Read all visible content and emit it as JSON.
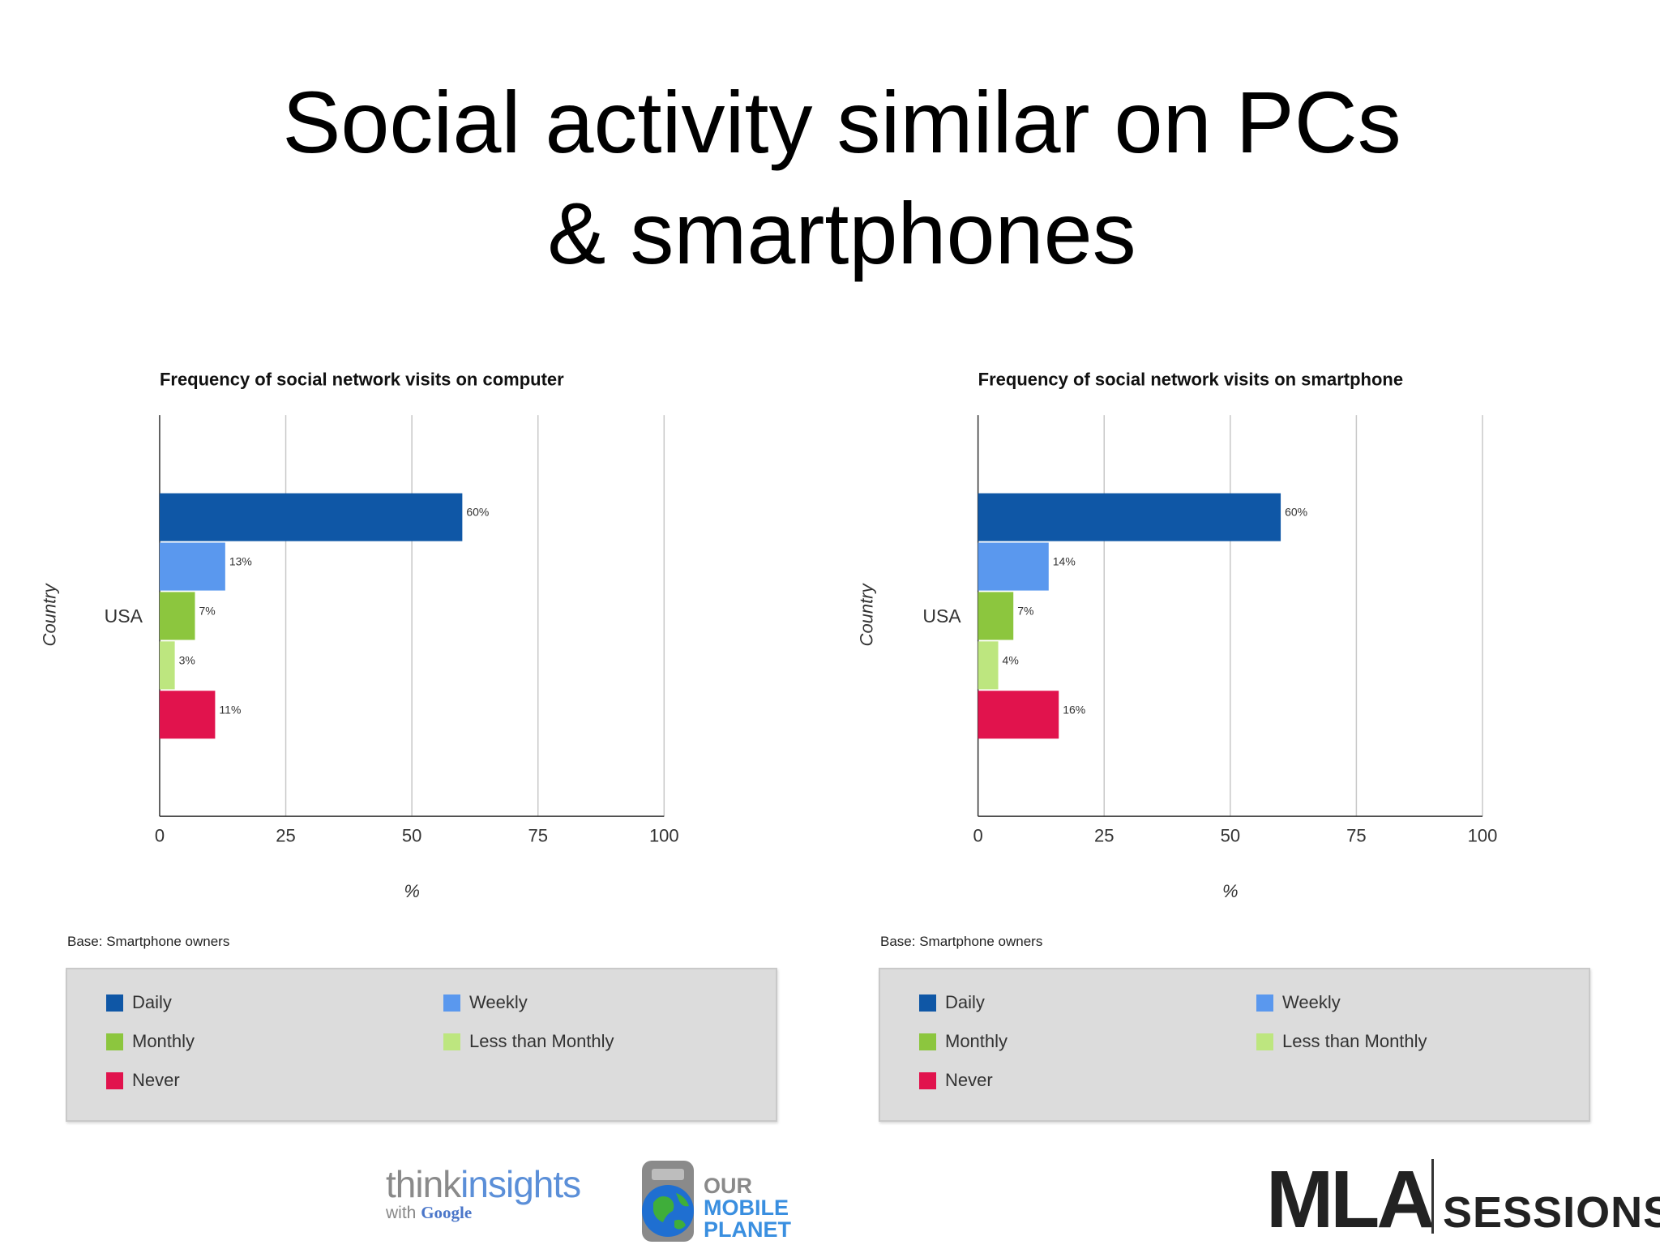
{
  "slide": {
    "title_line1": "Social activity similar on PCs",
    "title_line2": "& smartphones",
    "base_note": "Base: Smartphone owners"
  },
  "legend": {
    "items": [
      {
        "label": "Daily",
        "color": "#0f57a6"
      },
      {
        "label": "Weekly",
        "color": "#5a98ee"
      },
      {
        "label": "Monthly",
        "color": "#8cc63e"
      },
      {
        "label": "Less than Monthly",
        "color": "#bde67f"
      },
      {
        "label": "Never",
        "color": "#e1134d"
      }
    ]
  },
  "chart_data": [
    {
      "type": "bar",
      "orientation": "horizontal",
      "title": "Frequency of social network visits on computer",
      "xlabel": "%",
      "ylabel": "Country",
      "categories": [
        "USA"
      ],
      "xlim": [
        0,
        100
      ],
      "xticks": [
        "0",
        "25",
        "50",
        "75",
        "100"
      ],
      "grid": true,
      "series": [
        {
          "name": "Daily",
          "values": [
            60
          ],
          "label": "60%"
        },
        {
          "name": "Weekly",
          "values": [
            13
          ],
          "label": "13%"
        },
        {
          "name": "Monthly",
          "values": [
            7
          ],
          "label": "7%"
        },
        {
          "name": "Less than Monthly",
          "values": [
            3
          ],
          "label": "3%"
        },
        {
          "name": "Never",
          "values": [
            11
          ],
          "label": "11%"
        }
      ]
    },
    {
      "type": "bar",
      "orientation": "horizontal",
      "title": "Frequency of social network visits on smartphone",
      "xlabel": "%",
      "ylabel": "Country",
      "categories": [
        "USA"
      ],
      "xlim": [
        0,
        100
      ],
      "xticks": [
        "0",
        "25",
        "50",
        "75",
        "100"
      ],
      "grid": true,
      "series": [
        {
          "name": "Daily",
          "values": [
            60
          ],
          "label": "60%"
        },
        {
          "name": "Weekly",
          "values": [
            14
          ],
          "label": "14%"
        },
        {
          "name": "Monthly",
          "values": [
            7
          ],
          "label": "7%"
        },
        {
          "name": "Less than Monthly",
          "values": [
            4
          ],
          "label": "4%"
        },
        {
          "name": "Never",
          "values": [
            16
          ],
          "label": "16%"
        }
      ]
    }
  ],
  "logos": {
    "think_part1": "think",
    "think_part2": "insights",
    "think_sub_prefix": "with",
    "think_sub_brand": "Google",
    "omp_line1": "OUR",
    "omp_line2": "MOBILE",
    "omp_line3": "PLANET",
    "mla_main": "MLA",
    "mla_sub": "SESSIONS"
  }
}
